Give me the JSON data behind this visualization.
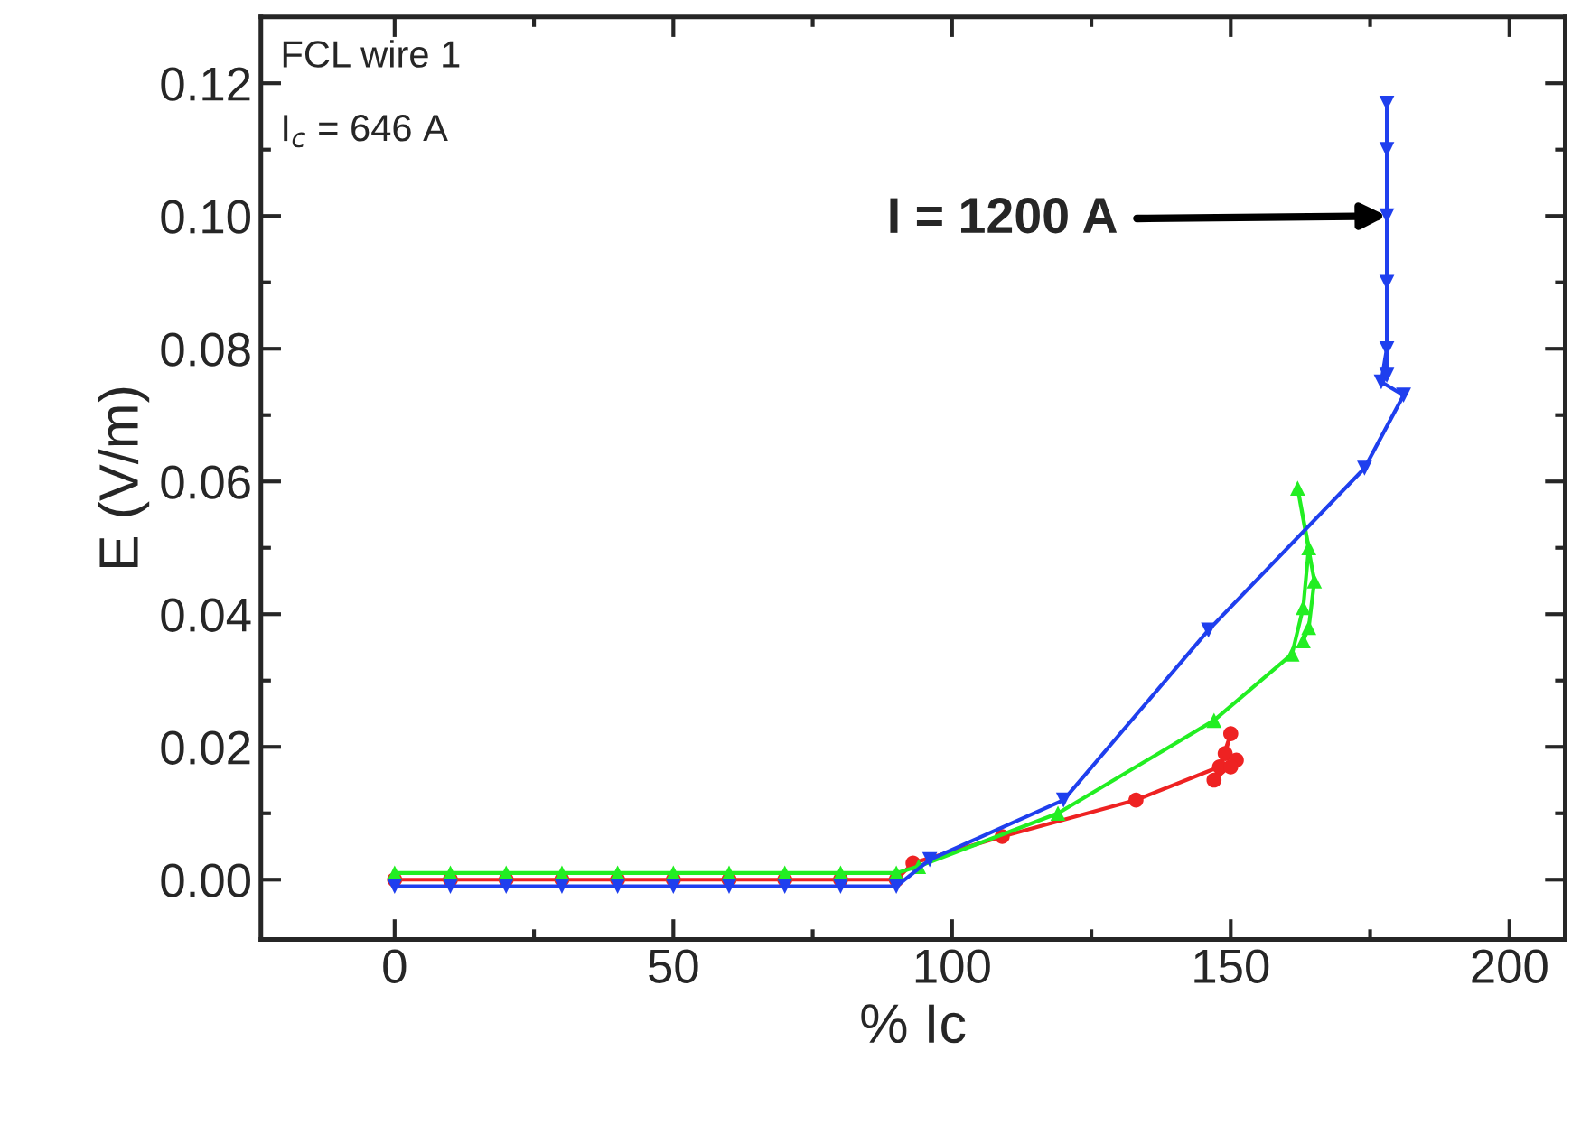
{
  "chart_data": {
    "type": "line",
    "xlabel": "% Ic",
    "ylabel": "E (V/m)",
    "xlim": [
      -24,
      210
    ],
    "ylim": [
      -0.009,
      0.13
    ],
    "xticks": [
      0,
      50,
      100,
      150,
      200
    ],
    "yticks": [
      {
        "value": 0,
        "label": "0.00"
      },
      {
        "value": 0.02,
        "label": "0.02"
      },
      {
        "value": 0.04,
        "label": "0.04"
      },
      {
        "value": 0.06,
        "label": "0.06"
      },
      {
        "value": 0.08,
        "label": "0.08"
      },
      {
        "value": 0.1,
        "label": "0.10"
      },
      {
        "value": 0.12,
        "label": "0.12"
      }
    ],
    "grid": false,
    "legend": false,
    "line_style": "solid",
    "annotations": [
      "FCL wire 1",
      "I$_{c}$ = 646 A",
      {
        "text": "I = 1200 A",
        "x": 178,
        "y": 0.1
      }
    ],
    "series": [
      {
        "color": "#ee2222",
        "marker": "circle",
        "x": [
          0,
          10,
          20,
          30,
          40,
          50,
          60,
          70,
          80,
          90,
          93,
          109,
          133,
          148,
          150,
          149,
          147,
          151,
          150
        ],
        "values": [
          0,
          0,
          0,
          0,
          0,
          0,
          0,
          0,
          0,
          0,
          0.0025,
          0.0065,
          0.012,
          0.017,
          0.022,
          0.019,
          0.015,
          0.018,
          0.017
        ]
      },
      {
        "color": "#22ee22",
        "marker": "triangle",
        "x": [
          0,
          10,
          20,
          30,
          40,
          50,
          60,
          70,
          80,
          90,
          94,
          119,
          147,
          161,
          163,
          164,
          162,
          165,
          164,
          163
        ],
        "values": [
          0.001,
          0.001,
          0.001,
          0.001,
          0.001,
          0.001,
          0.001,
          0.001,
          0.001,
          0.001,
          0.002,
          0.01,
          0.024,
          0.034,
          0.041,
          0.05,
          0.059,
          0.045,
          0.038,
          0.036
        ]
      },
      {
        "color": "#1f3fee",
        "marker": "triangle_down",
        "x": [
          0,
          10,
          20,
          30,
          40,
          50,
          60,
          70,
          80,
          90,
          96,
          120,
          146,
          174,
          181,
          177,
          178,
          178,
          178,
          178,
          178,
          178
        ],
        "values": [
          -0.001,
          -0.001,
          -0.001,
          -0.001,
          -0.001,
          -0.001,
          -0.001,
          -0.001,
          -0.001,
          -0.001,
          0.003,
          0.012,
          0.0376,
          0.062,
          0.073,
          0.075,
          0.08,
          0.09,
          0.1,
          0.11,
          0.117,
          0.076
        ]
      }
    ]
  }
}
